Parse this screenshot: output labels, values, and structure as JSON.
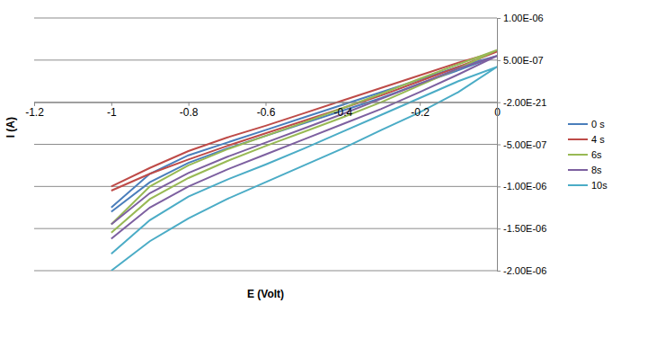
{
  "chart_data": {
    "type": "line",
    "x_label": "E (Volt)",
    "y_label": "I (A)",
    "x": [
      -1,
      -0.9,
      -0.8,
      -0.7,
      -0.6,
      -0.5,
      -0.4,
      -0.3,
      -0.2,
      -0.1,
      0,
      -0.1,
      -0.2,
      -0.3,
      -0.4,
      -0.5,
      -0.6,
      -0.7,
      -0.8,
      -0.9,
      -1
    ],
    "series": [
      {
        "name": "0 s",
        "color": "#4a7ebb",
        "values": [
          -1.3e-06,
          -9.5e-07,
          -7.2e-07,
          -5.5e-07,
          -4e-07,
          -2.5e-07,
          -1e-07,
          5e-08,
          2.2e-07,
          3.8e-07,
          5.5e-07,
          4.2e-07,
          2.7e-07,
          1.2e-07,
          -3e-08,
          -1.8e-07,
          -3.3e-07,
          -4.8e-07,
          -6.3e-07,
          -8.5e-07,
          -1.25e-06
        ]
      },
      {
        "name": "4 s",
        "color": "#be4b48",
        "values": [
          -1.05e-06,
          -8.5e-07,
          -6.8e-07,
          -5.2e-07,
          -3.7e-07,
          -2.2e-07,
          -7e-08,
          8e-08,
          2.5e-07,
          4.2e-07,
          6e-07,
          4.7e-07,
          3.2e-07,
          1.7e-07,
          2e-08,
          -1.3e-07,
          -2.8e-07,
          -4.2e-07,
          -5.8e-07,
          -7.8e-07,
          -1e-06
        ]
      },
      {
        "name": "6s",
        "color": "#98b954",
        "values": [
          -1.55e-06,
          -1.15e-06,
          -9e-07,
          -7e-07,
          -5.2e-07,
          -3.5e-07,
          -1.8e-07,
          0.0,
          2e-07,
          4e-07,
          6.2e-07,
          4.5e-07,
          2.8e-07,
          1e-07,
          -7e-08,
          -2.4e-07,
          -4e-07,
          -5.6e-07,
          -7.5e-07,
          -1e-06,
          -1.45e-06
        ]
      },
      {
        "name": "8s",
        "color": "#7d60a0",
        "values": [
          -1.62e-06,
          -1.25e-06,
          -1e-06,
          -8e-07,
          -6.2e-07,
          -4.4e-07,
          -2.6e-07,
          -8e-08,
          1.2e-07,
          3.3e-07,
          5.5e-07,
          4e-07,
          2.2e-07,
          4e-08,
          -1.4e-07,
          -3.1e-07,
          -4.8e-07,
          -6.5e-07,
          -8.4e-07,
          -1.08e-06,
          -1.45e-06
        ]
      },
      {
        "name": "10s",
        "color": "#4bacc6",
        "values": [
          -2e-06,
          -1.65e-06,
          -1.38e-06,
          -1.15e-06,
          -9.5e-07,
          -7.5e-07,
          -5.5e-07,
          -3.3e-07,
          -1.2e-07,
          1.2e-07,
          4.2e-07,
          2.5e-07,
          5e-08,
          -1.5e-07,
          -3.5e-07,
          -5.5e-07,
          -7.4e-07,
          -9.2e-07,
          -1.12e-06,
          -1.4e-06,
          -1.8e-06
        ]
      }
    ],
    "xlim": [
      -1.2,
      0
    ],
    "xticks": [
      -1.2,
      -1,
      -0.8,
      -0.6,
      -0.4,
      -0.2,
      0
    ],
    "ylim": [
      -2e-06,
      1e-06
    ],
    "yticks": [
      {
        "value": -2e-06,
        "label": "-2.00E-06"
      },
      {
        "value": -1.5e-06,
        "label": "-1.50E-06"
      },
      {
        "value": -1e-06,
        "label": "-1.00E-06"
      },
      {
        "value": -5e-07,
        "label": "-5.00E-07"
      },
      {
        "value": -2e-21,
        "label": "-2.00E-21"
      },
      {
        "value": 5e-07,
        "label": "5.00E-07"
      },
      {
        "value": 1e-06,
        "label": "1.00E-06"
      }
    ],
    "grid": true,
    "legend": "right"
  }
}
